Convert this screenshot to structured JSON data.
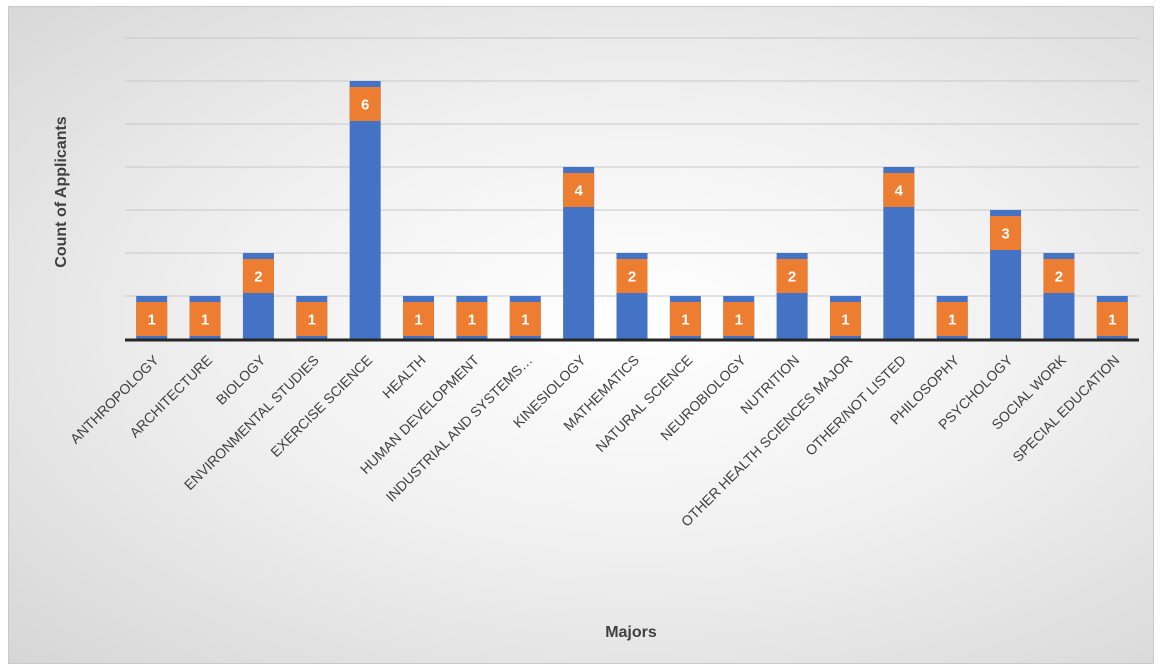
{
  "chart_data": {
    "type": "bar",
    "title": "",
    "xlabel": "Majors",
    "ylabel": "Count of Applicants",
    "ylim": [
      0,
      7
    ],
    "grid": true,
    "legend": "none",
    "categories": [
      "ANTHROPOLOGY",
      "ARCHITECTURE",
      "BIOLOGY",
      "ENVIRONMENTAL STUDIES",
      "EXERCISE SCIENCE",
      "HEALTH",
      "HUMAN DEVELOPMENT",
      "INDUSTRIAL AND SYSTEMS…",
      "KINESIOLOGY",
      "MATHEMATICS",
      "NATURAL SCIENCE",
      "NEUROBIOLOGY",
      "NUTRITION",
      "OTHER HEALTH SCIENCES MAJOR",
      "OTHER/NOT LISTED",
      "PHILOSOPHY",
      "PSYCHOLOGY",
      "SOCIAL WORK",
      "SPECIAL EDUCATION"
    ],
    "values": [
      1,
      1,
      2,
      1,
      6,
      1,
      1,
      1,
      4,
      2,
      1,
      1,
      2,
      1,
      4,
      1,
      3,
      2,
      1
    ],
    "colors": {
      "bar": "#4472c4",
      "label_box": "#ed7d31",
      "grid": "#c8c8c8",
      "axis": "#262626"
    }
  }
}
